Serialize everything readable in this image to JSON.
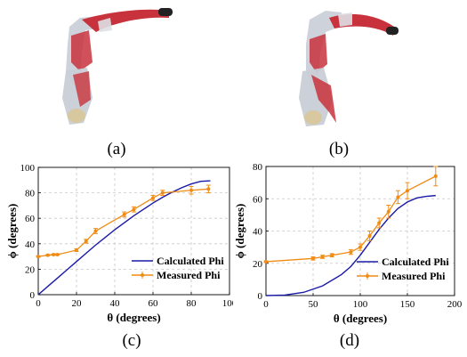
{
  "figure": {
    "panels": {
      "a": "(a)",
      "b": "(b)",
      "c": "(c)",
      "d": "(d)"
    }
  },
  "colors": {
    "calculated": "#1a1aa8",
    "measured": "#f08c14",
    "grid": "#c8c8c8",
    "robot_red": "#c8323c",
    "bag": "#c9cdd6",
    "tip": "#222222"
  },
  "chart_data": [
    {
      "id": "c",
      "type": "line",
      "xlabel": "θ (degrees)",
      "ylabel": "ϕ (degrees)",
      "xlim": [
        0,
        100
      ],
      "ylim": [
        0,
        100
      ],
      "xticks": [
        0,
        20,
        40,
        60,
        80,
        100
      ],
      "yticks": [
        0,
        20,
        40,
        60,
        80,
        100
      ],
      "grid": true,
      "legend_position": "bottom-right",
      "series": [
        {
          "name": "Calculated Phi",
          "style": "line",
          "x": [
            0,
            5,
            10,
            15,
            20,
            25,
            30,
            35,
            40,
            45,
            50,
            55,
            60,
            65,
            70,
            75,
            80,
            85,
            90
          ],
          "y": [
            0,
            6.5,
            13,
            19.5,
            26,
            32.5,
            39,
            45,
            51,
            56.5,
            62,
            67,
            72,
            76.5,
            80.5,
            84,
            87,
            89,
            89.5
          ]
        },
        {
          "name": "Measured Phi",
          "style": "line-errorbar",
          "x": [
            0,
            5,
            8,
            10,
            20,
            25,
            30,
            45,
            50,
            60,
            65,
            80,
            89
          ],
          "y": [
            30,
            31,
            31.5,
            31.5,
            35,
            42,
            50,
            63,
            67,
            76,
            80,
            82,
            83
          ],
          "err": [
            0.5,
            0.5,
            0.5,
            0.5,
            1,
            1.5,
            2,
            2,
            2,
            2,
            2,
            3,
            3
          ]
        }
      ]
    },
    {
      "id": "d",
      "type": "line",
      "xlabel": "θ (degrees)",
      "ylabel": "ϕ (degrees)",
      "xlim": [
        0,
        200
      ],
      "ylim": [
        0,
        80
      ],
      "xticks": [
        0,
        50,
        100,
        150,
        200
      ],
      "yticks": [
        0,
        20,
        40,
        60,
        80
      ],
      "grid": true,
      "legend_position": "bottom-right",
      "series": [
        {
          "name": "Calculated Phi",
          "style": "line",
          "x": [
            0,
            20,
            40,
            60,
            80,
            90,
            100,
            110,
            120,
            130,
            140,
            150,
            160,
            170,
            180
          ],
          "y": [
            0,
            0.3,
            2,
            6,
            13,
            18,
            25,
            33,
            41,
            48,
            54,
            58,
            60.5,
            61.5,
            62
          ]
        },
        {
          "name": "Measured Phi",
          "style": "line-errorbar",
          "x": [
            0,
            50,
            60,
            70,
            90,
            100,
            110,
            120,
            130,
            140,
            150,
            180
          ],
          "y": [
            21,
            23,
            24,
            25,
            27,
            30,
            37,
            45,
            52,
            61,
            65,
            74
          ],
          "err": [
            0.5,
            1,
            1,
            1,
            1.5,
            2,
            3,
            3,
            4,
            4,
            5,
            6
          ]
        }
      ]
    }
  ]
}
